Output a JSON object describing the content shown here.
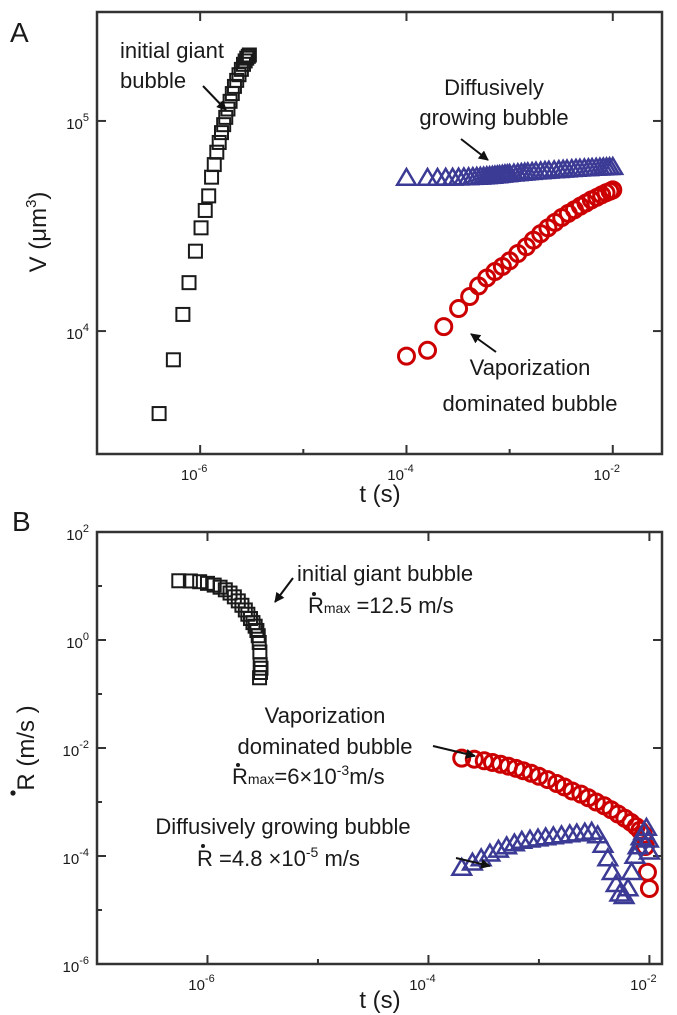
{
  "chart_data": [
    {
      "panel": "A",
      "type": "scatter",
      "xlabel": "t (s)",
      "ylabel": "V (μm",
      "ylabel_sup": "3",
      "ylabel_close": ")",
      "xscale": "log",
      "yscale": "log",
      "xlim": [
        1e-07,
        0.03
      ],
      "ylim": [
        2600,
        330000
      ],
      "xticks": [
        {
          "value": 1e-06,
          "base": "10",
          "exp": "-6"
        },
        {
          "value": 0.0001,
          "base": "10",
          "exp": "-4"
        },
        {
          "value": 0.01,
          "base": "10",
          "exp": "-2"
        }
      ],
      "yticks": [
        {
          "value": 10000.0,
          "base": "10",
          "exp": "4"
        },
        {
          "value": 100000.0,
          "base": "10",
          "exp": "5"
        }
      ],
      "series": [
        {
          "marker": "square",
          "color": "#1a1a1a",
          "x": [
            4e-07,
            5.5e-07,
            6.8e-07,
            7.8e-07,
            9e-07,
            1.02e-06,
            1.12e-06,
            1.21e-06,
            1.29e-06,
            1.37e-06,
            1.45e-06,
            1.53e-06,
            1.61e-06,
            1.69e-06,
            1.77e-06,
            1.86e-06,
            1.95e-06,
            2.05e-06,
            2.15e-06,
            2.26e-06,
            2.38e-06,
            2.51e-06,
            2.63e-06,
            2.73e-06,
            2.83e-06,
            2.93e-06,
            3e-06
          ],
          "y": [
            4050,
            7300,
            12000,
            17000,
            24000,
            31000,
            37500,
            44000,
            54000,
            62000,
            71000,
            79000,
            88000,
            96000,
            104000,
            114000,
            124000,
            135000,
            146000,
            156000,
            166000,
            176000,
            186000,
            193000,
            199000,
            203000,
            206000
          ]
        },
        {
          "marker": "circle",
          "color": "#cc0000",
          "x": [
            0.0001,
            0.00016,
            0.00023,
            0.00032,
            0.00041,
            0.0005,
            0.0006,
            0.00072,
            0.00085,
            0.001,
            0.0012,
            0.00145,
            0.0017,
            0.002,
            0.00235,
            0.00275,
            0.0032,
            0.0037,
            0.00425,
            0.00485,
            0.0055,
            0.0062,
            0.007,
            0.0078,
            0.0086,
            0.0094,
            0.01
          ],
          "y": [
            7600,
            8100,
            10500,
            12800,
            14600,
            16400,
            17900,
            19200,
            20300,
            21600,
            23400,
            25200,
            27100,
            29100,
            31000,
            32900,
            34700,
            36300,
            37800,
            39300,
            40700,
            42100,
            43300,
            44500,
            45500,
            46300,
            47000
          ]
        },
        {
          "marker": "triangle",
          "color": "#3b3a94",
          "x": [
            0.0001,
            0.00016,
            0.0002,
            0.00024,
            0.00028,
            0.00032,
            0.00036,
            0.0004,
            0.00044,
            0.00048,
            0.00052,
            0.00056,
            0.0006,
            0.00064,
            0.00068,
            0.00072,
            0.00076,
            0.0008,
            0.00085,
            0.0009,
            0.00095,
            0.001,
            0.0011,
            0.0012,
            0.0013,
            0.0014,
            0.0015,
            0.00165,
            0.0018,
            0.002,
            0.0022,
            0.0024,
            0.0027,
            0.003,
            0.0033,
            0.0036,
            0.004,
            0.0044,
            0.0048,
            0.0053,
            0.0058,
            0.0063,
            0.0069,
            0.0075,
            0.0081,
            0.0087,
            0.0093,
            0.01
          ],
          "y": [
            53500,
            53500,
            53500,
            53600,
            53600,
            53700,
            53800,
            53900,
            54000,
            54100,
            54200,
            54300,
            54500,
            54600,
            54700,
            54900,
            55000,
            55200,
            55400,
            55600,
            55700,
            55900,
            56100,
            56300,
            56500,
            56700,
            56900,
            57100,
            57300,
            57500,
            57700,
            57900,
            58100,
            58300,
            58500,
            58700,
            58900,
            59100,
            59200,
            59400,
            59500,
            59700,
            59800,
            59900,
            60000,
            60100,
            60200,
            60300
          ]
        }
      ],
      "annotations": [
        {
          "lines": [
            "initial giant",
            "bubble"
          ]
        },
        {
          "lines": [
            "Diffusively",
            "growing bubble"
          ]
        },
        {
          "lines": [
            "Vaporization",
            "dominated bubble"
          ]
        }
      ]
    },
    {
      "panel": "B",
      "type": "scatter",
      "xlabel": "t (s)",
      "ylabel": "R (m/s )",
      "xscale": "log",
      "yscale": "log",
      "xlim": [
        1e-07,
        0.013
      ],
      "ylim": [
        1e-06,
        100
      ],
      "xticks": [
        {
          "value": 1e-06,
          "base": "10",
          "exp": "-6"
        },
        {
          "value": 0.0001,
          "base": "10",
          "exp": "-4"
        },
        {
          "value": 0.01,
          "base": "10",
          "exp": "-2"
        }
      ],
      "yticks": [
        {
          "value": 1e-06,
          "base": "10",
          "exp": "-6"
        },
        {
          "value": 0.0001,
          "base": "10",
          "exp": "-4"
        },
        {
          "value": 0.01,
          "base": "10",
          "exp": "-2"
        },
        {
          "value": 1,
          "base": "10",
          "exp": "0"
        },
        {
          "value": 100,
          "base": "10",
          "exp": "2"
        }
      ],
      "series": [
        {
          "marker": "square",
          "color": "#1a1a1a",
          "x": [
            5.5e-07,
            7e-07,
            8.5e-07,
            1e-06,
            1.15e-06,
            1.3e-06,
            1.45e-06,
            1.6e-06,
            1.75e-06,
            1.9e-06,
            2.05e-06,
            2.2e-06,
            2.32e-06,
            2.45e-06,
            2.58e-06,
            2.7e-06,
            2.8e-06,
            2.88e-06,
            2.94e-06,
            2.98e-06,
            3e-06,
            3.02e-06,
            2.96e-06,
            3.05e-06
          ],
          "y": [
            12.5,
            12.4,
            12.0,
            11.2,
            10.4,
            9.5,
            8.5,
            7.4,
            6.3,
            5.3,
            4.4,
            3.6,
            3.0,
            2.5,
            2.1,
            1.8,
            1.5,
            1.2,
            0.9,
            0.6,
            0.35,
            0.25,
            0.2,
            0.3
          ]
        },
        {
          "marker": "circle",
          "color": "#cc0000",
          "x": [
            0.0002,
            0.00026,
            0.00032,
            0.00038,
            0.00045,
            0.00053,
            0.00062,
            0.00072,
            0.00085,
            0.001,
            0.0012,
            0.00145,
            0.0017,
            0.002,
            0.0024,
            0.0028,
            0.0033,
            0.0039,
            0.0045,
            0.0052,
            0.006,
            0.0068,
            0.0076,
            0.0082,
            0.0088,
            0.0092,
            0.0096,
            0.01
          ],
          "y": [
            0.0065,
            0.0062,
            0.0058,
            0.0054,
            0.005,
            0.0046,
            0.0042,
            0.0038,
            0.0034,
            0.003,
            0.0026,
            0.0022,
            0.0019,
            0.0016,
            0.0014,
            0.0012,
            0.001,
            0.00085,
            0.00072,
            0.0006,
            0.0005,
            0.00042,
            0.00035,
            0.0003,
            0.00025,
            0.00015,
            5e-05,
            2.5e-05
          ]
        },
        {
          "marker": "triangle",
          "color": "#3b3a94",
          "x": [
            0.0002,
            0.00025,
            0.0003,
            0.00036,
            0.00043,
            0.00051,
            0.0006,
            0.0007,
            0.00083,
            0.00098,
            0.00115,
            0.00135,
            0.0016,
            0.0019,
            0.0022,
            0.0026,
            0.003,
            0.0034,
            0.0038,
            0.0042,
            0.0046,
            0.005,
            0.0054,
            0.0059,
            0.0064,
            0.0069,
            0.0074,
            0.0079,
            0.0084,
            0.0089,
            0.0094,
            0.0098,
            0.01
          ],
          "y": [
            6e-05,
            7.5e-05,
            9e-05,
            0.00011,
            0.00013,
            0.00015,
            0.00017,
            0.00019,
            0.0002,
            0.00021,
            0.00022,
            0.00023,
            0.00024,
            0.00025,
            0.00026,
            0.00027,
            0.00028,
            0.00024,
            0.00016,
            9e-05,
            5e-05,
            3e-05,
            2e-05,
            1.8e-05,
            2.5e-05,
            5e-05,
            0.0001,
            0.00015,
            0.00022,
            0.00028,
            0.00033,
            0.0002,
            0.00012
          ]
        }
      ],
      "annotations": [
        {
          "lines": [
            "initial giant bubble"
          ],
          "rate_prefix": "R",
          "rate_sub": "max",
          "rate_value": " =12.5 m/s"
        },
        {
          "lines": [
            "Vaporization",
            "dominated bubble"
          ],
          "rate_prefix": "R",
          "rate_sub": "max",
          "rate_value": "=6×10",
          "rate_exp": "-3",
          "rate_unit": "m/s"
        },
        {
          "lines": [
            "Diffusively growing bubble"
          ],
          "rate_prefix": "R",
          "rate_value": " =4.8 ×10",
          "rate_exp": "-5",
          "rate_unit": " m/s"
        }
      ]
    }
  ]
}
